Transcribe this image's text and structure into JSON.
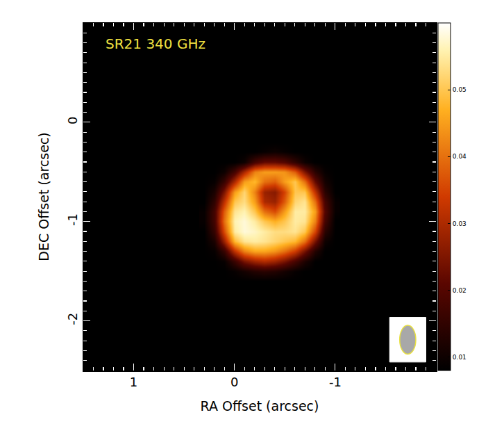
{
  "chart_data": {
    "type": "heatmap",
    "title": "SR21 340 GHz",
    "x_label": "RA Offset (arcsec)",
    "y_label": "DEC Offset (arcsec)",
    "xlim": [
      1.5,
      -2.0
    ],
    "ylim": [
      -2.5,
      1.0
    ],
    "xticks": [
      1,
      0,
      -1
    ],
    "yticks": [
      0,
      -1,
      -2
    ],
    "x": [
      0.3,
      0.2,
      0.1,
      0.0,
      -0.1,
      -0.2,
      -0.3,
      -0.4,
      -0.5,
      -0.6,
      -0.7,
      -0.8,
      -0.9,
      -1.0
    ],
    "y": [
      -0.2,
      -0.3,
      -0.4,
      -0.5,
      -0.6,
      -0.7,
      -0.8,
      -0.9,
      -1.0,
      -1.1,
      -1.2,
      -1.3,
      -1.4,
      -1.5,
      -1.6
    ],
    "z": [
      [
        0.008,
        0.008,
        0.008,
        0.008,
        0.008,
        0.008,
        0.008,
        0.008,
        0.008,
        0.008,
        0.008,
        0.008,
        0.008,
        0.008
      ],
      [
        0.008,
        0.008,
        0.008,
        0.008,
        0.008,
        0.008,
        0.009,
        0.01,
        0.009,
        0.008,
        0.008,
        0.008,
        0.008,
        0.008
      ],
      [
        0.008,
        0.008,
        0.008,
        0.008,
        0.01,
        0.018,
        0.022,
        0.022,
        0.02,
        0.015,
        0.01,
        0.008,
        0.008,
        0.008
      ],
      [
        0.008,
        0.008,
        0.01,
        0.018,
        0.03,
        0.042,
        0.045,
        0.045,
        0.044,
        0.038,
        0.025,
        0.014,
        0.009,
        0.008
      ],
      [
        0.008,
        0.009,
        0.016,
        0.03,
        0.045,
        0.048,
        0.04,
        0.038,
        0.045,
        0.05,
        0.04,
        0.022,
        0.011,
        0.008
      ],
      [
        0.008,
        0.012,
        0.025,
        0.045,
        0.052,
        0.042,
        0.028,
        0.026,
        0.035,
        0.05,
        0.05,
        0.032,
        0.014,
        0.008
      ],
      [
        0.008,
        0.015,
        0.032,
        0.05,
        0.053,
        0.045,
        0.03,
        0.028,
        0.038,
        0.052,
        0.054,
        0.04,
        0.018,
        0.009
      ],
      [
        0.009,
        0.018,
        0.038,
        0.054,
        0.056,
        0.05,
        0.04,
        0.036,
        0.045,
        0.055,
        0.055,
        0.045,
        0.02,
        0.009
      ],
      [
        0.009,
        0.018,
        0.04,
        0.056,
        0.058,
        0.055,
        0.05,
        0.047,
        0.05,
        0.055,
        0.054,
        0.042,
        0.018,
        0.008
      ],
      [
        0.008,
        0.016,
        0.036,
        0.055,
        0.058,
        0.057,
        0.055,
        0.053,
        0.053,
        0.054,
        0.05,
        0.035,
        0.014,
        0.008
      ],
      [
        0.008,
        0.012,
        0.028,
        0.048,
        0.054,
        0.055,
        0.054,
        0.052,
        0.05,
        0.048,
        0.04,
        0.024,
        0.01,
        0.008
      ],
      [
        0.008,
        0.009,
        0.016,
        0.032,
        0.042,
        0.046,
        0.046,
        0.044,
        0.04,
        0.034,
        0.024,
        0.013,
        0.008,
        0.008
      ],
      [
        0.008,
        0.008,
        0.009,
        0.016,
        0.024,
        0.028,
        0.03,
        0.028,
        0.024,
        0.018,
        0.012,
        0.008,
        0.008,
        0.008
      ],
      [
        0.008,
        0.008,
        0.008,
        0.009,
        0.011,
        0.013,
        0.014,
        0.013,
        0.011,
        0.009,
        0.008,
        0.008,
        0.008,
        0.008
      ],
      [
        0.008,
        0.008,
        0.008,
        0.008,
        0.008,
        0.008,
        0.008,
        0.008,
        0.008,
        0.008,
        0.008,
        0.008,
        0.008,
        0.008
      ]
    ],
    "zlim": [
      0.008,
      0.06
    ],
    "zticks": [
      0.01,
      0.02,
      0.03,
      0.04,
      0.05
    ],
    "beam": {
      "ra": -1.72,
      "dec": -2.19,
      "width": 0.16,
      "height": 0.29
    }
  }
}
